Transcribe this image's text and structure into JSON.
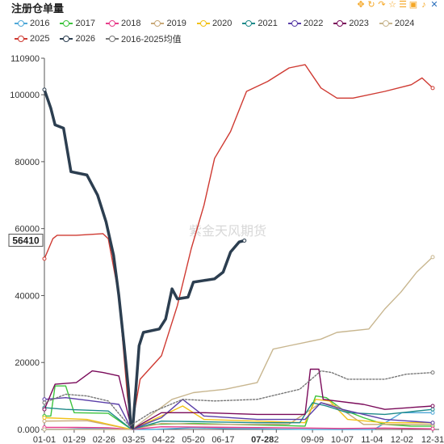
{
  "title": "注册仓单量",
  "toolbar": {
    "icons": [
      "move-icon",
      "refresh-icon",
      "redo-icon",
      "star-icon",
      "list-icon",
      "image-icon",
      "bell-icon",
      "close-icon"
    ]
  },
  "watermark": "紫金天风期货",
  "chart_data": {
    "type": "line",
    "ylim": [
      0,
      110900
    ],
    "y_ticks": [
      "0.000",
      "20000",
      "40000",
      "60000",
      "80000",
      "100000",
      "110900"
    ],
    "x_ticks": [
      "01-01",
      "01-29",
      "02-26",
      "03-25",
      "04-22",
      "05-20",
      "06-17",
      "07-28",
      "2",
      "09-09",
      "10-07",
      "11-04",
      "12-02",
      "12-31"
    ],
    "x_highlight": "07-28",
    "y_highlight": "56410",
    "grid": false,
    "legend_position": "top",
    "series": [
      {
        "name": "2016",
        "color": "#4fa8d8",
        "points": [
          [
            0,
            0
          ],
          [
            15,
            0
          ],
          [
            40,
            300
          ],
          [
            60,
            200
          ],
          [
            83,
            0
          ],
          [
            100,
            0
          ],
          [
            140,
            500
          ],
          [
            170,
            300
          ],
          [
            200,
            200
          ],
          [
            220,
            100
          ],
          [
            250,
            0
          ],
          [
            290,
            0
          ],
          [
            310,
            0
          ],
          [
            336,
            5000
          ],
          [
            365,
            5000
          ]
        ]
      },
      {
        "name": "2017",
        "color": "#3ec43e",
        "points": [
          [
            0,
            4000
          ],
          [
            6,
            4000
          ],
          [
            10,
            13000
          ],
          [
            20,
            13000
          ],
          [
            28,
            5000
          ],
          [
            60,
            4800
          ],
          [
            82,
            0
          ],
          [
            100,
            1500
          ],
          [
            140,
            1800
          ],
          [
            175,
            1500
          ],
          [
            220,
            1200
          ],
          [
            245,
            1000
          ],
          [
            255,
            10000
          ],
          [
            265,
            9500
          ],
          [
            280,
            6000
          ],
          [
            300,
            3500
          ],
          [
            320,
            1500
          ],
          [
            345,
            1000
          ],
          [
            365,
            1000
          ]
        ]
      },
      {
        "name": "2018",
        "color": "#e83e8c",
        "points": [
          [
            0,
            600
          ],
          [
            30,
            600
          ],
          [
            60,
            500
          ],
          [
            82,
            0
          ],
          [
            110,
            800
          ],
          [
            150,
            700
          ],
          [
            180,
            600
          ],
          [
            220,
            500
          ],
          [
            250,
            400
          ],
          [
            280,
            300
          ],
          [
            320,
            400
          ],
          [
            365,
            200
          ]
        ]
      },
      {
        "name": "2019",
        "color": "#c8a878",
        "points": [
          [
            0,
            2500
          ],
          [
            40,
            2600
          ],
          [
            82,
            0
          ],
          [
            110,
            1800
          ],
          [
            150,
            1500
          ],
          [
            200,
            1500
          ],
          [
            230,
            1600
          ],
          [
            260,
            8000
          ],
          [
            275,
            7000
          ],
          [
            300,
            1500
          ],
          [
            365,
            1500
          ]
        ]
      },
      {
        "name": "2020",
        "color": "#f2c218",
        "points": [
          [
            0,
            3500
          ],
          [
            40,
            3000
          ],
          [
            82,
            0
          ],
          [
            110,
            4000
          ],
          [
            130,
            7000
          ],
          [
            150,
            3000
          ],
          [
            200,
            2500
          ],
          [
            245,
            2000
          ],
          [
            255,
            9000
          ],
          [
            268,
            8500
          ],
          [
            285,
            3000
          ],
          [
            320,
            2000
          ],
          [
            365,
            2000
          ]
        ]
      },
      {
        "name": "2021",
        "color": "#1f8a8a",
        "points": [
          [
            0,
            6500
          ],
          [
            20,
            6000
          ],
          [
            60,
            5500
          ],
          [
            82,
            0
          ],
          [
            110,
            2500
          ],
          [
            150,
            2300
          ],
          [
            200,
            2000
          ],
          [
            240,
            2000
          ],
          [
            252,
            8000
          ],
          [
            265,
            7000
          ],
          [
            285,
            5000
          ],
          [
            320,
            4500
          ],
          [
            365,
            6000
          ]
        ]
      },
      {
        "name": "2022",
        "color": "#5a3ea8",
        "points": [
          [
            0,
            9000
          ],
          [
            20,
            9500
          ],
          [
            45,
            8500
          ],
          [
            70,
            7500
          ],
          [
            82,
            0
          ],
          [
            110,
            3500
          ],
          [
            130,
            9000
          ],
          [
            150,
            4000
          ],
          [
            200,
            3000
          ],
          [
            245,
            3000
          ],
          [
            260,
            8000
          ],
          [
            280,
            6000
          ],
          [
            320,
            3000
          ],
          [
            365,
            2000
          ]
        ]
      },
      {
        "name": "2023",
        "color": "#7a0a5a",
        "points": [
          [
            0,
            6000
          ],
          [
            10,
            13500
          ],
          [
            30,
            14000
          ],
          [
            45,
            17500
          ],
          [
            55,
            17000
          ],
          [
            70,
            16000
          ],
          [
            82,
            0
          ],
          [
            110,
            5000
          ],
          [
            150,
            5000
          ],
          [
            200,
            4500
          ],
          [
            245,
            4500
          ],
          [
            250,
            18000
          ],
          [
            258,
            18000
          ],
          [
            262,
            9000
          ],
          [
            300,
            7500
          ],
          [
            320,
            6000
          ],
          [
            365,
            7000
          ]
        ]
      },
      {
        "name": "2024",
        "color": "#c8b68f",
        "points": [
          [
            0,
            0
          ],
          [
            40,
            0
          ],
          [
            82,
            0
          ],
          [
            120,
            9000
          ],
          [
            140,
            11000
          ],
          [
            170,
            12000
          ],
          [
            200,
            14000
          ],
          [
            215,
            24000
          ],
          [
            230,
            25000
          ],
          [
            245,
            26000
          ],
          [
            260,
            27000
          ],
          [
            275,
            29000
          ],
          [
            305,
            30000
          ],
          [
            320,
            36000
          ],
          [
            335,
            41000
          ],
          [
            350,
            47000
          ],
          [
            365,
            51500
          ]
        ]
      },
      {
        "name": "2025",
        "color": "#cf3a32",
        "points": [
          [
            0,
            51000
          ],
          [
            8,
            57000
          ],
          [
            12,
            58000
          ],
          [
            30,
            58000
          ],
          [
            55,
            58500
          ],
          [
            60,
            57000
          ],
          [
            70,
            40000
          ],
          [
            78,
            10000
          ],
          [
            82,
            500
          ],
          [
            90,
            15000
          ],
          [
            110,
            22000
          ],
          [
            125,
            37000
          ],
          [
            138,
            54000
          ],
          [
            150,
            67000
          ],
          [
            160,
            81000
          ],
          [
            175,
            89000
          ],
          [
            190,
            101000
          ],
          [
            210,
            104000
          ],
          [
            230,
            108000
          ],
          [
            245,
            109000
          ],
          [
            260,
            102000
          ],
          [
            275,
            99000
          ],
          [
            290,
            99000
          ],
          [
            320,
            101000
          ],
          [
            345,
            103000
          ],
          [
            355,
            105000
          ],
          [
            365,
            102000
          ]
        ]
      },
      {
        "name": "2026",
        "color": "#2c3e50",
        "width": 3.5,
        "points": [
          [
            0,
            101500
          ],
          [
            6,
            96000
          ],
          [
            10,
            91000
          ],
          [
            18,
            90000
          ],
          [
            25,
            77000
          ],
          [
            40,
            76000
          ],
          [
            50,
            70000
          ],
          [
            58,
            62000
          ],
          [
            65,
            52000
          ],
          [
            70,
            40000
          ],
          [
            75,
            25000
          ],
          [
            79,
            12000
          ],
          [
            81,
            2000
          ],
          [
            83,
            500
          ],
          [
            86,
            12000
          ],
          [
            89,
            25000
          ],
          [
            93,
            29000
          ],
          [
            108,
            30000
          ],
          [
            114,
            33000
          ],
          [
            120,
            42000
          ],
          [
            125,
            39000
          ],
          [
            135,
            39500
          ],
          [
            140,
            44000
          ],
          [
            150,
            44500
          ],
          [
            160,
            45000
          ],
          [
            168,
            47000
          ],
          [
            175,
            53000
          ],
          [
            183,
            56000
          ],
          [
            188,
            56410
          ]
        ]
      },
      {
        "name": "2016-2025均值",
        "color": "#777777",
        "dashed": true,
        "points": [
          [
            0,
            8000
          ],
          [
            20,
            10500
          ],
          [
            40,
            10000
          ],
          [
            60,
            8500
          ],
          [
            80,
            1000
          ],
          [
            100,
            5000
          ],
          [
            130,
            9000
          ],
          [
            160,
            8500
          ],
          [
            200,
            9000
          ],
          [
            240,
            12000
          ],
          [
            260,
            17500
          ],
          [
            270,
            17000
          ],
          [
            285,
            15000
          ],
          [
            320,
            15000
          ],
          [
            340,
            16500
          ],
          [
            365,
            17000
          ]
        ]
      }
    ]
  }
}
